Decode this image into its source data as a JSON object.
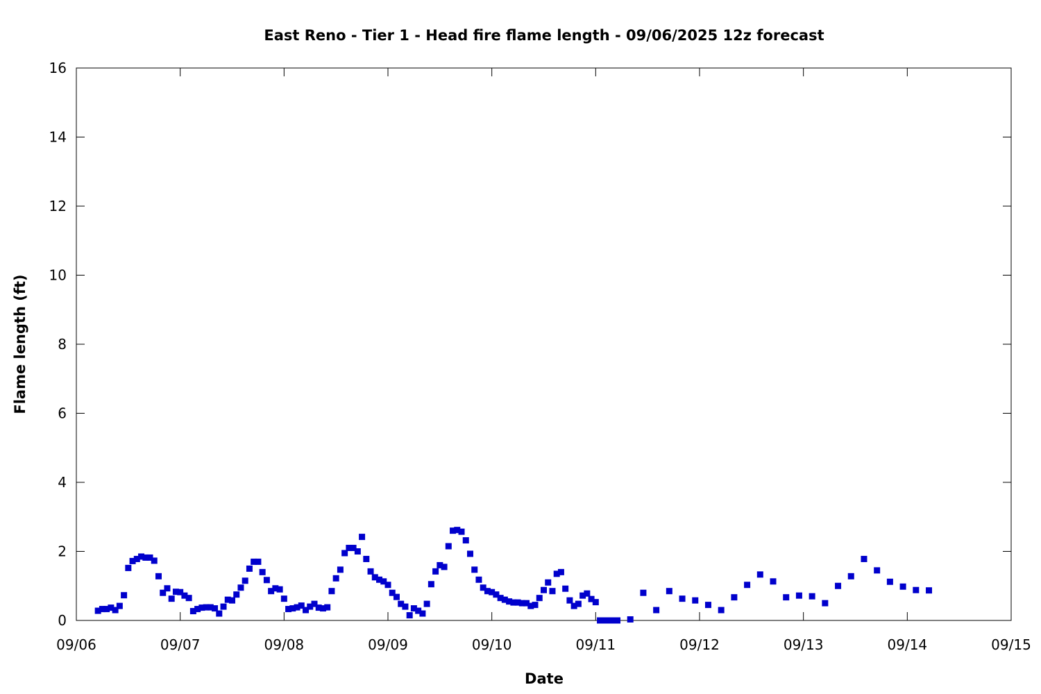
{
  "chart_data": {
    "type": "scatter",
    "title": "East Reno - Tier 1 - Head fire flame length - 09/06/2025 12z forecast",
    "xlabel": "Date",
    "ylabel": "Flame length (ft)",
    "xlim": [
      0,
      216
    ],
    "ylim": [
      0,
      16
    ],
    "xticks": [
      {
        "value": 0,
        "label": "09/06"
      },
      {
        "value": 24,
        "label": "09/07"
      },
      {
        "value": 48,
        "label": "09/08"
      },
      {
        "value": 72,
        "label": "09/09"
      },
      {
        "value": 96,
        "label": "09/10"
      },
      {
        "value": 120,
        "label": "09/11"
      },
      {
        "value": 144,
        "label": "09/12"
      },
      {
        "value": 168,
        "label": "09/13"
      },
      {
        "value": 192,
        "label": "09/14"
      },
      {
        "value": 216,
        "label": "09/15"
      }
    ],
    "yticks": [
      0,
      2,
      4,
      6,
      8,
      10,
      12,
      14,
      16
    ],
    "series": [
      {
        "color": "#0000cc",
        "x": [
          5,
          6,
          7,
          8,
          9,
          10,
          11,
          12,
          13,
          14,
          15,
          16,
          17,
          18,
          19,
          20,
          21,
          22,
          23,
          24,
          25,
          26,
          27,
          28,
          29,
          30,
          31,
          32,
          33,
          34,
          35,
          36,
          37,
          38,
          39,
          40,
          41,
          42,
          43,
          44,
          45,
          46,
          47,
          48,
          49,
          50,
          51,
          52,
          53,
          54,
          55,
          56,
          57,
          58,
          59,
          60,
          61,
          62,
          63,
          64,
          65,
          66,
          67,
          68,
          69,
          70,
          71,
          72,
          73,
          74,
          75,
          76,
          77,
          78,
          79,
          80,
          81,
          82,
          83,
          84,
          85,
          86,
          87,
          88,
          89,
          90,
          91,
          92,
          93,
          94,
          95,
          96,
          97,
          98,
          99,
          100,
          101,
          102,
          103,
          104,
          105,
          106,
          107,
          108,
          109,
          110,
          111,
          112,
          113,
          114,
          115,
          116,
          117,
          118,
          119,
          120,
          121,
          122,
          123,
          124,
          125,
          128,
          131,
          134,
          137,
          140,
          143,
          146,
          149,
          152,
          155,
          158,
          161,
          164,
          167,
          170,
          173,
          176,
          179,
          182,
          185,
          188,
          191,
          194,
          197
        ],
        "values": [
          0.28,
          0.33,
          0.33,
          0.37,
          0.3,
          0.42,
          0.73,
          1.52,
          1.72,
          1.78,
          1.85,
          1.82,
          1.82,
          1.73,
          1.28,
          0.8,
          0.93,
          0.63,
          0.83,
          0.82,
          0.72,
          0.65,
          0.27,
          0.33,
          0.37,
          0.38,
          0.38,
          0.35,
          0.2,
          0.4,
          0.6,
          0.58,
          0.75,
          0.95,
          1.15,
          1.5,
          1.7,
          1.7,
          1.4,
          1.17,
          0.85,
          0.93,
          0.9,
          0.63,
          0.33,
          0.35,
          0.38,
          0.43,
          0.3,
          0.4,
          0.48,
          0.37,
          0.35,
          0.38,
          0.85,
          1.22,
          1.47,
          1.95,
          2.1,
          2.1,
          2.0,
          2.42,
          1.78,
          1.42,
          1.25,
          1.18,
          1.13,
          1.03,
          0.8,
          0.68,
          0.48,
          0.4,
          0.15,
          0.35,
          0.28,
          0.2,
          0.48,
          1.05,
          1.42,
          1.6,
          1.55,
          2.15,
          2.6,
          2.62,
          2.57,
          2.32,
          1.93,
          1.47,
          1.18,
          0.95,
          0.85,
          0.82,
          0.75,
          0.65,
          0.6,
          0.55,
          0.52,
          0.52,
          0.5,
          0.5,
          0.42,
          0.45,
          0.65,
          0.88,
          1.1,
          0.85,
          1.35,
          1.4,
          0.92,
          0.58,
          0.42,
          0.48,
          0.72,
          0.78,
          0.62,
          0.53,
          0,
          0,
          0,
          0,
          0,
          0.03,
          0.8,
          0.3,
          0.85,
          0.63,
          0.58,
          0.45,
          0.3,
          0.67,
          1.03,
          1.33,
          1.13,
          0.67,
          0.72,
          0.7,
          0.5,
          1.0,
          1.28,
          1.78,
          1.45,
          1.12,
          0.98,
          0.88,
          0.87
        ]
      }
    ]
  }
}
